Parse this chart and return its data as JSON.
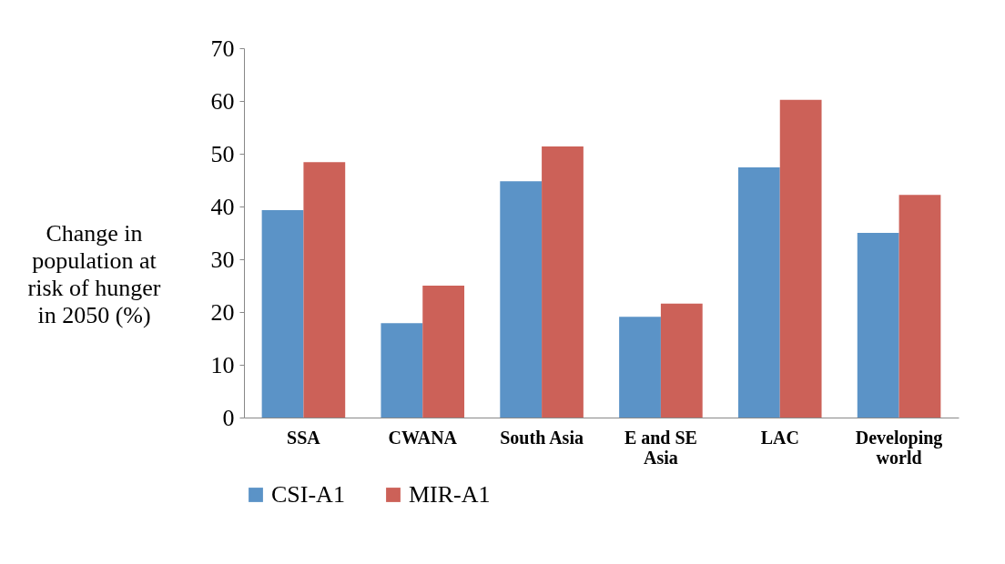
{
  "chart_data": {
    "type": "bar",
    "ylabel": "Change in population at risk of hunger in 2050 (%)",
    "categories": [
      "SSA",
      "CWANA",
      "South Asia",
      "E and SE Asia",
      "LAC",
      "Developing world"
    ],
    "series": [
      {
        "name": "CSI-A1",
        "color": "#5b93c7",
        "values": [
          39.3,
          17.9,
          44.8,
          19.1,
          47.4,
          35.0
        ]
      },
      {
        "name": "MIR-A1",
        "color": "#cc6158",
        "values": [
          48.4,
          25.0,
          51.4,
          21.6,
          60.2,
          42.2
        ]
      }
    ],
    "ylim": [
      0,
      70
    ],
    "yticks": [
      0,
      10,
      20,
      30,
      40,
      50,
      60,
      70
    ],
    "grid": false,
    "legend": "bottom"
  }
}
